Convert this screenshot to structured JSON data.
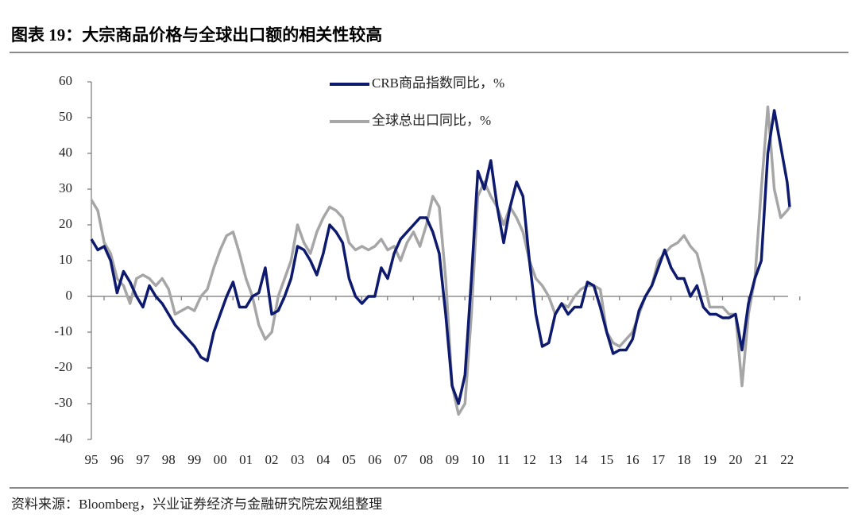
{
  "chart_data": {
    "type": "line",
    "title": "图表 19：大宗商品价格与全球出口额的相关性较高",
    "source": "资料来源：Bloomberg，兴业证券经济与金融研究院宏观组整理",
    "x": [
      1995,
      1995.25,
      1995.5,
      1995.75,
      1996,
      1996.25,
      1996.5,
      1996.75,
      1997,
      1997.25,
      1997.5,
      1997.75,
      1998,
      1998.25,
      1998.5,
      1998.75,
      1999,
      1999.25,
      1999.5,
      1999.75,
      2000,
      2000.25,
      2000.5,
      2000.75,
      2001,
      2001.25,
      2001.5,
      2001.75,
      2002,
      2002.25,
      2002.5,
      2002.75,
      2003,
      2003.25,
      2003.5,
      2003.75,
      2004,
      2004.25,
      2004.5,
      2004.75,
      2005,
      2005.25,
      2005.5,
      2005.75,
      2006,
      2006.25,
      2006.5,
      2006.75,
      2007,
      2007.25,
      2007.5,
      2007.75,
      2008,
      2008.25,
      2008.5,
      2008.75,
      2009,
      2009.25,
      2009.5,
      2009.75,
      2010,
      2010.25,
      2010.5,
      2010.75,
      2011,
      2011.25,
      2011.5,
      2011.75,
      2012,
      2012.25,
      2012.5,
      2012.75,
      2013,
      2013.25,
      2013.5,
      2013.75,
      2014,
      2014.25,
      2014.5,
      2014.75,
      2015,
      2015.25,
      2015.5,
      2015.75,
      2016,
      2016.25,
      2016.5,
      2016.75,
      2017,
      2017.25,
      2017.5,
      2017.75,
      2018,
      2018.25,
      2018.5,
      2018.75,
      2019,
      2019.25,
      2019.5,
      2019.75,
      2020,
      2020.25,
      2020.5,
      2020.75,
      2021,
      2021.25,
      2021.5,
      2021.75,
      2022,
      2022.1
    ],
    "series": [
      {
        "name": "CRB商品指数同比，%",
        "color": "#0d1a6e",
        "values": [
          16,
          13,
          14,
          10,
          1,
          7,
          4,
          0,
          -3,
          3,
          0,
          -2,
          -5,
          -8,
          -10,
          -12,
          -14,
          -17,
          -18,
          -10,
          -5,
          0,
          4,
          -3,
          -3,
          0,
          1,
          8,
          -5,
          -4,
          0,
          5,
          14,
          13,
          10,
          6,
          12,
          20,
          18,
          15,
          5,
          0,
          -2,
          0,
          0,
          8,
          5,
          12,
          16,
          18,
          20,
          22,
          22,
          18,
          12,
          -5,
          -25,
          -30,
          -22,
          5,
          35,
          30,
          38,
          25,
          15,
          25,
          32,
          28,
          10,
          -5,
          -14,
          -13,
          -5,
          -2,
          -5,
          -3,
          -3,
          4,
          3,
          -3,
          -10,
          -16,
          -15,
          -15,
          -12,
          -4,
          0,
          3,
          8,
          13,
          8,
          5,
          5,
          0,
          3,
          -3,
          -5,
          -5,
          -6,
          -6,
          -5,
          -15,
          -2,
          5,
          10,
          40,
          52,
          42,
          32,
          25
        ]
      },
      {
        "name": "全球总出口同比，%",
        "color": "#a6a6a6",
        "values": [
          27,
          24,
          15,
          12,
          5,
          3,
          -2,
          5,
          6,
          5,
          3,
          5,
          2,
          -5,
          -4,
          -3,
          -4,
          0,
          2,
          8,
          13,
          17,
          18,
          12,
          5,
          0,
          -8,
          -12,
          -10,
          0,
          5,
          10,
          20,
          15,
          12,
          18,
          22,
          25,
          24,
          22,
          15,
          13,
          14,
          13,
          14,
          16,
          13,
          14,
          10,
          15,
          18,
          14,
          20,
          28,
          25,
          5,
          -25,
          -33,
          -30,
          -5,
          28,
          32,
          28,
          25,
          20,
          25,
          22,
          18,
          10,
          5,
          3,
          0,
          -5,
          -2,
          -3,
          0,
          2,
          3,
          3,
          2,
          -10,
          -13,
          -14,
          -12,
          -10,
          -5,
          0,
          3,
          10,
          12,
          14,
          15,
          17,
          14,
          12,
          5,
          -3,
          -3,
          -3,
          -5,
          -5,
          -25,
          -5,
          5,
          30,
          53,
          30,
          22,
          24,
          25
        ]
      }
    ],
    "xlim": [
      1995,
      2022.5
    ],
    "ylim": [
      -40,
      60
    ],
    "yticks": [
      -40,
      -30,
      -20,
      -10,
      0,
      10,
      20,
      30,
      40,
      50,
      60
    ],
    "xticks": [
      {
        "value": 1995,
        "label": "95"
      },
      {
        "value": 1996,
        "label": "96"
      },
      {
        "value": 1997,
        "label": "97"
      },
      {
        "value": 1998,
        "label": "98"
      },
      {
        "value": 1999,
        "label": "99"
      },
      {
        "value": 2000,
        "label": "00"
      },
      {
        "value": 2001,
        "label": "01"
      },
      {
        "value": 2002,
        "label": "02"
      },
      {
        "value": 2003,
        "label": "03"
      },
      {
        "value": 2004,
        "label": "04"
      },
      {
        "value": 2005,
        "label": "05"
      },
      {
        "value": 2006,
        "label": "06"
      },
      {
        "value": 2007,
        "label": "07"
      },
      {
        "value": 2008,
        "label": "08"
      },
      {
        "value": 2009,
        "label": "09"
      },
      {
        "value": 2010,
        "label": "10"
      },
      {
        "value": 2011,
        "label": "11"
      },
      {
        "value": 2012,
        "label": "12"
      },
      {
        "value": 2013,
        "label": "13"
      },
      {
        "value": 2014,
        "label": "14"
      },
      {
        "value": 2015,
        "label": "15"
      },
      {
        "value": 2016,
        "label": "16"
      },
      {
        "value": 2017,
        "label": "17"
      },
      {
        "value": 2018,
        "label": "18"
      },
      {
        "value": 2019,
        "label": "19"
      },
      {
        "value": 2020,
        "label": "20"
      },
      {
        "value": 2021,
        "label": "21"
      },
      {
        "value": 2022,
        "label": "22"
      }
    ]
  }
}
